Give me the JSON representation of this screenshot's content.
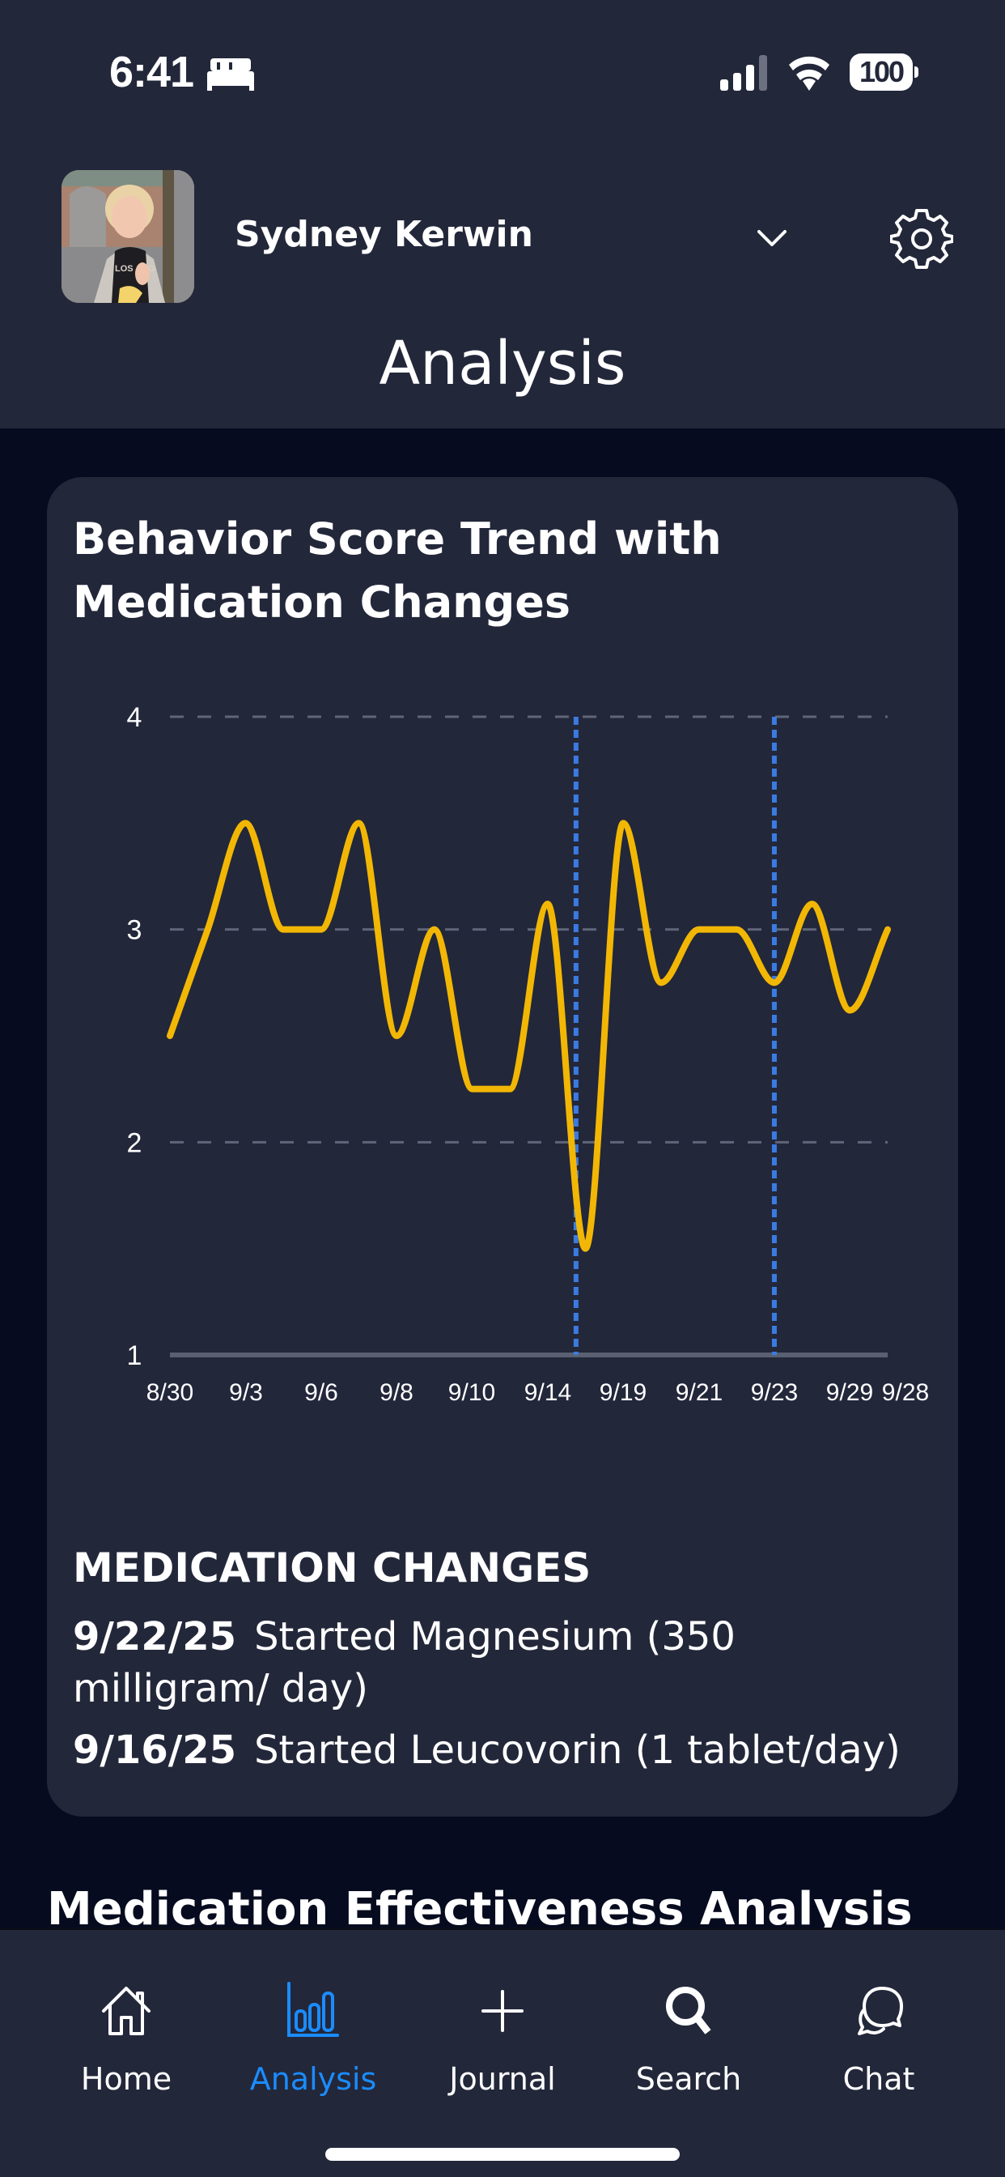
{
  "status_bar": {
    "time": "6:41",
    "focus_icon": "bed-icon",
    "signal_icon": "cellular-signal-icon",
    "wifi_icon": "wifi-icon",
    "battery_level": "100"
  },
  "header": {
    "profile_name": "Sydney Kerwin",
    "dropdown_icon": "chevron-down-icon",
    "settings_icon": "gear-icon",
    "page_title": "Analysis"
  },
  "card": {
    "title": "Behavior Score Trend with Medication Changes",
    "medication_changes_heading": "MEDICATION CHANGES",
    "medication_changes": [
      {
        "date": "9/22/25",
        "description": "Started Magnesium (350 milligram/ day)"
      },
      {
        "date": "9/16/25",
        "description": "Started Leucovorin (1 tablet/day)"
      }
    ]
  },
  "next_section": {
    "title": "Medication Effectiveness Analysis"
  },
  "colors": {
    "background": "#060b1f",
    "surface": "#23273a",
    "line": "#f2b705",
    "medication_marker": "#3a7be0",
    "grid": "#5f6678",
    "accent": "#1a8cff"
  },
  "chart_data": {
    "type": "line",
    "title": "Behavior Score Trend with Medication Changes",
    "xlabel": "",
    "ylabel": "",
    "ylim": [
      1,
      4
    ],
    "yticks": [
      1,
      2,
      3,
      4
    ],
    "grid": "horizontal dashed",
    "legend": "none",
    "x_tick_labels": [
      "8/30",
      "9/3",
      "9/6",
      "9/8",
      "9/10",
      "9/14",
      "9/19",
      "9/21",
      "9/23",
      "9/29",
      "9/28"
    ],
    "series": [
      {
        "name": "Behavior Score",
        "x_index": [
          0,
          1,
          2,
          3,
          4,
          5,
          6,
          7,
          8,
          9,
          10,
          11,
          12,
          13,
          14,
          15,
          16,
          17,
          18,
          19
        ],
        "values": [
          2.5,
          3.0,
          3.5,
          3.0,
          3.0,
          3.5,
          2.5,
          3.0,
          2.25,
          2.25,
          3.12,
          1.5,
          3.5,
          2.75,
          3.0,
          3.0,
          2.75,
          3.12,
          2.62,
          3.0
        ]
      }
    ],
    "medication_markers": [
      {
        "date": "9/16",
        "x_index": 10.75,
        "label": "Started Leucovorin"
      },
      {
        "date": "9/22",
        "x_index": 16,
        "label": "Started Magnesium"
      }
    ]
  },
  "tab_bar": {
    "tabs": [
      {
        "label": "Home",
        "icon": "home-icon",
        "active": false
      },
      {
        "label": "Analysis",
        "icon": "bar-chart-icon",
        "active": true
      },
      {
        "label": "Journal",
        "icon": "plus-icon",
        "active": false
      },
      {
        "label": "Search",
        "icon": "search-icon",
        "active": false
      },
      {
        "label": "Chat",
        "icon": "chat-bubbles-icon",
        "active": false
      }
    ]
  }
}
